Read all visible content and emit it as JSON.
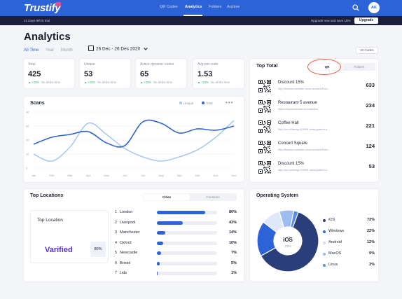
{
  "header": {
    "logo": "Trustify",
    "nav": [
      "QR Codes",
      "Analytics",
      "Folders",
      "Archive"
    ],
    "active_nav": "Analytics",
    "avatar": "AK"
  },
  "trial": {
    "left": "21 Days left in trial",
    "right": "Upgrade now and save 15%",
    "button": "Upgrade"
  },
  "page": {
    "title": "Analytics",
    "filters": [
      "All Time",
      "Year",
      "Month"
    ],
    "date_range": "26 Dec - 26 Dec 2020",
    "codes_chip": "20 Codes"
  },
  "stats": [
    {
      "label": "Total",
      "value": "425",
      "delta": "+23%",
      "since": "No all the time"
    },
    {
      "label": "Unique",
      "value": "53",
      "delta": "+10%",
      "since": "No all the time"
    },
    {
      "label": "Active dynamic codes",
      "value": "65",
      "delta": "+23%",
      "since": "No all the time"
    },
    {
      "label": "Avg per code",
      "value": "1.53",
      "delta": "+23%",
      "since": "No all the time"
    }
  ],
  "scans": {
    "title": "Scans",
    "legend": [
      {
        "name": "Unique",
        "color": "#a9c8f3"
      },
      {
        "name": "Total",
        "color": "#2d63d8"
      }
    ],
    "more": "•••"
  },
  "chart_data": {
    "type": "line",
    "title": "Scans",
    "categories": [
      "Jan",
      "Feb",
      "Mar",
      "Apr",
      "May",
      "Jun",
      "Jul",
      "Aug",
      "Sep",
      "Oct",
      "Nov",
      "Dec"
    ],
    "y_ticks": [
      0,
      10,
      20,
      30,
      40
    ],
    "ylim": [
      0,
      40
    ],
    "series": [
      {
        "name": "Unique",
        "color": "#a9c8f3",
        "values": [
          10,
          5,
          15,
          32,
          24,
          14,
          8,
          5,
          8,
          13,
          22,
          34
        ]
      },
      {
        "name": "Total",
        "color": "#2d63d8",
        "values": [
          17,
          22,
          24,
          26,
          18,
          16,
          33,
          32,
          25,
          28,
          27,
          30
        ]
      }
    ]
  },
  "top_total": {
    "title": "Top Total",
    "tabs": [
      "QR",
      "Folders"
    ],
    "items": [
      {
        "name": "Discount 15%",
        "url": "http://finance.rambler.ru/currencies/Ecta...",
        "count": "633"
      },
      {
        "name": "Restaurant 5 avenue",
        "url": "https://superconcise.ru/analytics",
        "count": "234"
      },
      {
        "name": "Coffee Hall",
        "url": "http://ss.ru/design/16981-sklepgration-s...",
        "count": "221"
      },
      {
        "name": "Concert Square",
        "url": "http://finance.rambler.ru/currencies/Ecta...",
        "count": "124"
      },
      {
        "name": "Discount 15%",
        "url": "http://ss.ru/design/16981-sklepgration-s...",
        "count": "53"
      }
    ]
  },
  "locations": {
    "title": "Top Locations",
    "tabs": [
      "Cities",
      "Countries"
    ],
    "top_label": "Top Location",
    "top_name": "Varified",
    "top_pct": "80%",
    "items": [
      {
        "idx": "1",
        "name": "London",
        "pct": "80%",
        "value": 80
      },
      {
        "idx": "2",
        "name": "Liverpool",
        "pct": "43%",
        "value": 43
      },
      {
        "idx": "3",
        "name": "Manchester",
        "pct": "14%",
        "value": 14
      },
      {
        "idx": "4",
        "name": "Oxford",
        "pct": "10%",
        "value": 10
      },
      {
        "idx": "5",
        "name": "Newcastle",
        "pct": "7%",
        "value": 7
      },
      {
        "idx": "6",
        "name": "Bristol",
        "pct": "5%",
        "value": 5
      },
      {
        "idx": "7",
        "name": "Lids",
        "pct": "1%",
        "value": 1
      }
    ]
  },
  "os": {
    "title": "Operating System",
    "center_label": "iOS",
    "center_pct": "73%",
    "items": [
      {
        "name": "iOS",
        "pct": "73%",
        "value": 73,
        "color": "#2a3f7a"
      },
      {
        "name": "Windows",
        "pct": "22%",
        "value": 22,
        "color": "#2d63d8"
      },
      {
        "name": "Android",
        "pct": "12%",
        "value": 12,
        "color": "#dfe8fb"
      },
      {
        "name": "MacOS",
        "pct": "9%",
        "value": 9,
        "color": "#9dbcf0"
      },
      {
        "name": "Linux",
        "pct": "3%",
        "value": 3,
        "color": "#5a8ee8"
      }
    ]
  }
}
